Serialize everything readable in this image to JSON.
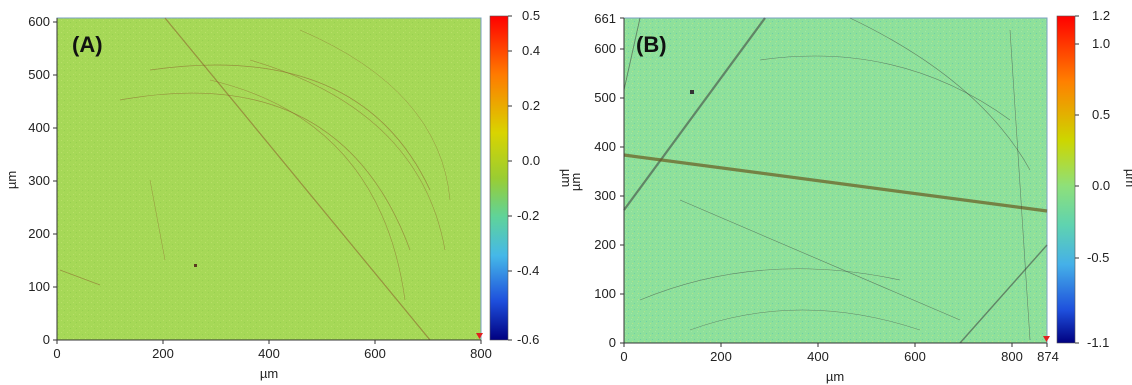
{
  "panels": [
    {
      "label": "(A)",
      "xlabel": "µm",
      "ylabel": "µm",
      "cbar_label": "µm",
      "x_ticks": [
        "0",
        "200",
        "400",
        "600",
        "800"
      ],
      "y_ticks": [
        "0",
        "100",
        "200",
        "300",
        "400",
        "500",
        "600"
      ],
      "cbar_ticks": [
        "0.5",
        "0.4",
        "0.2",
        "0.0",
        "-0.2",
        "-0.4",
        "-0.6"
      ],
      "xlim": [
        0,
        800
      ],
      "ylim": [
        0,
        610
      ],
      "cbar_range": [
        -0.6,
        0.5
      ],
      "surface_color": "#a6d857"
    },
    {
      "label": "(B)",
      "xlabel": "µm",
      "ylabel": "µm",
      "cbar_label": "µm",
      "x_ticks": [
        "0",
        "200",
        "400",
        "600",
        "800",
        "874"
      ],
      "y_ticks": [
        "0",
        "100",
        "200",
        "300",
        "400",
        "500",
        "600",
        "661"
      ],
      "cbar_ticks": [
        "1.2",
        "1.0",
        "0.5",
        "0.0",
        "-0.5",
        "-1.1"
      ],
      "xlim": [
        0,
        874
      ],
      "ylim": [
        0,
        661
      ],
      "cbar_range": [
        -1.1,
        1.2
      ],
      "surface_color": "#8ee09b"
    }
  ],
  "colorbar_colors": [
    "#ff0000",
    "#ff8c00",
    "#e8e000",
    "#9acd32",
    "#5fd38d",
    "#4fb6e6",
    "#1e5adc",
    "#000080"
  ]
}
